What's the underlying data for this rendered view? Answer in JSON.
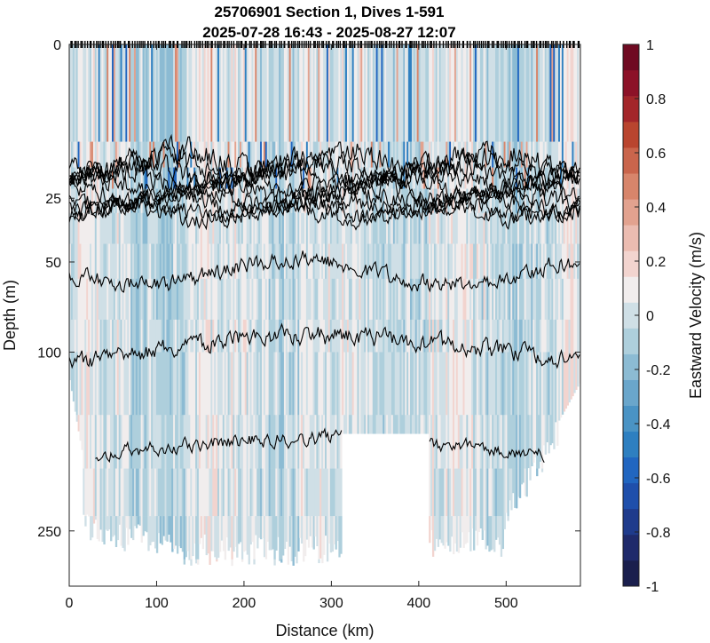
{
  "chart_data": {
    "type": "heatmap",
    "title": "25706901 Section 1, Dives 1-591",
    "subtitle": "2025-07-28 16:43 - 2025-08-27 12:07",
    "xlabel": "Distance (km)",
    "ylabel": "Depth (m)",
    "xlim": [
      0,
      585
    ],
    "ylim": [
      0,
      310
    ],
    "y_scale": "sqrt",
    "x_ticks": [
      0,
      100,
      200,
      300,
      400,
      500
    ],
    "y_ticks": [
      0,
      25,
      50,
      100,
      250
    ],
    "colorbar": {
      "label": "Eastward Velocity (m/s)",
      "range": [
        -1,
        1
      ],
      "ticks": [
        -1,
        -0.8,
        -0.6,
        -0.4,
        -0.2,
        0,
        0.2,
        0.4,
        0.6,
        0.8,
        1
      ],
      "tick_labels": [
        "-1",
        "-0.8",
        "-0.6",
        "-0.4",
        "-0.2",
        "0",
        "0.2",
        "0.4",
        "0.6",
        "0.8",
        "1"
      ],
      "colors": [
        "#1a1f4d",
        "#1f2a6b",
        "#1f3b8c",
        "#1f4fab",
        "#2166c0",
        "#2e7fc0",
        "#4a93c4",
        "#6aa6cb",
        "#8cbbd3",
        "#aecfdc",
        "#cfdfe6",
        "#f1eded",
        "#f2d4cf",
        "#ebbcb1",
        "#e2a28f",
        "#d7856b",
        "#c9654c",
        "#b9452f",
        "#a3262a",
        "#8c1228",
        "#6f0a22"
      ]
    },
    "data_gap": {
      "x_range": [
        312,
        412
      ],
      "depth_below": 160
    },
    "isopycnal_mean_depths": [
      15,
      16,
      17.5,
      19,
      21,
      23,
      25,
      27,
      29,
      30,
      55,
      108,
      178
    ],
    "dive_markers_depth": 0
  }
}
